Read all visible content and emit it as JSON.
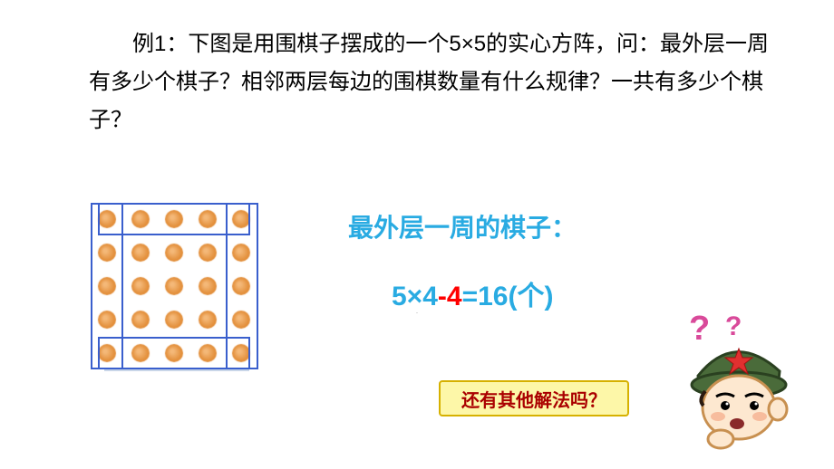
{
  "question": "例1：下图是用围棋子摆成的一个5×5的实心方阵，问：最外层一周有多少个棋子？相邻两层每边的围棋数量有什么规律？一共有多少个棋子？",
  "diagram": {
    "type": "grid-dots",
    "rows": 5,
    "cols": 5,
    "dot_color": "#e08830",
    "dot_radius": 10,
    "spacing": 37,
    "padding": 18,
    "outline_colors": {
      "frame": "#3a5fcd",
      "shadow": "#c9d6e8"
    }
  },
  "answer_label": "最外层一周的棋子：",
  "equation": {
    "part1": "5×4",
    "part2": "-4",
    "part3": "=16(个)",
    "colors": {
      "part1": "#29abe2",
      "part2": "#ff0000",
      "part3": "#29abe2"
    }
  },
  "callout": "还有其他解法吗？",
  "page_indicator": "·",
  "soldier": {
    "helmet_color": "#4a6b3a",
    "star_color": "#e03030",
    "face_color": "#fde8d0",
    "qmark_color": "#d94a9a"
  }
}
